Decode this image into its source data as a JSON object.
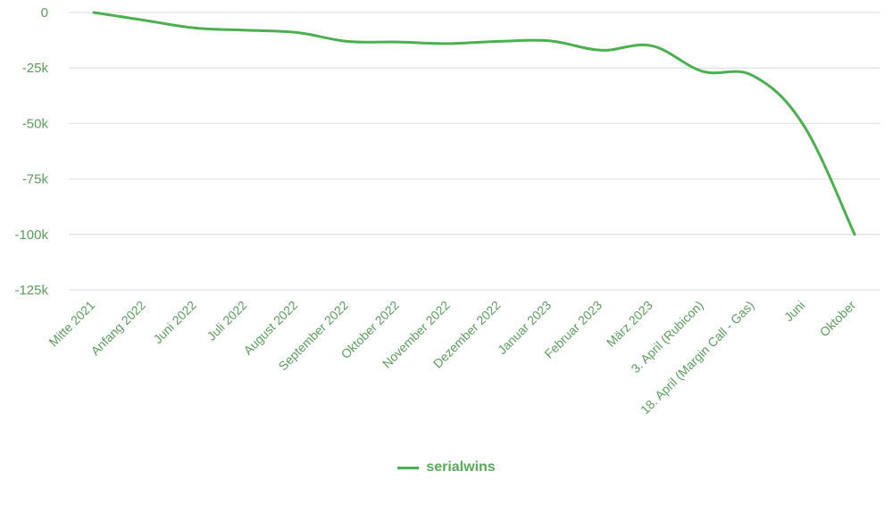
{
  "chart_data": {
    "type": "line",
    "title": "",
    "xlabel": "",
    "ylabel": "",
    "categories": [
      "Mitte 2021",
      "Anfang 2022",
      "Juni 2022",
      "Juli 2022",
      "August 2022",
      "September 2022",
      "Oktober 2022",
      "November 2022",
      "Dezember 2022",
      "Januar 2023",
      "Februar 2023",
      "März 2023",
      "3. April (Rubicon)",
      "18. April (Margin Call - Gas)",
      "Juni",
      "Oktober"
    ],
    "series": [
      {
        "name": "serialwins",
        "color": "#4caf50",
        "values": [
          0,
          -3500,
          -7000,
          -8000,
          -9000,
          -13000,
          -13300,
          -14000,
          -13000,
          -12800,
          -17000,
          -15000,
          -26500,
          -28500,
          -51000,
          -100000
        ]
      }
    ],
    "ylim": [
      -125000,
      0
    ],
    "yticks": [
      0,
      -25000,
      -50000,
      -75000,
      -100000,
      -125000
    ],
    "ytick_labels": [
      "0",
      "-25k",
      "-50k",
      "-75k",
      "-100k",
      "-125k"
    ],
    "grid": true,
    "smooth": true,
    "legend_position": "bottom"
  },
  "legend": {
    "label": "serialwins"
  }
}
